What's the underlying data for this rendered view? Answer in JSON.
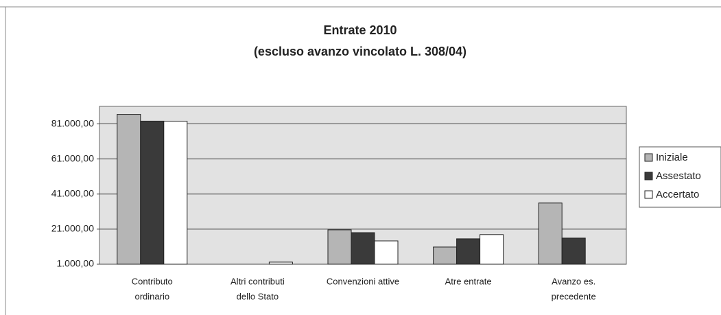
{
  "chart_data": {
    "type": "bar",
    "title": "Entrate 2010",
    "subtitle": "(escluso avanzo vincolato L. 308/04)",
    "categories": [
      [
        "Contributo",
        "ordinario"
      ],
      [
        "Altri contributi",
        "dello Stato"
      ],
      [
        "Convenzioni attive"
      ],
      [
        "Atre entrate"
      ],
      [
        "Avanzo es.",
        "precedente"
      ]
    ],
    "series": [
      {
        "name": "Iniziale",
        "color": "#b5b5b5",
        "values": [
          86500,
          null,
          20600,
          10800,
          35900
        ]
      },
      {
        "name": "Assestato",
        "color": "#3a3a3a",
        "values": [
          82600,
          null,
          19000,
          15500,
          15900
        ]
      },
      {
        "name": "Accertato",
        "color": "#ffffff",
        "values": [
          82500,
          2200,
          14300,
          17900,
          null
        ]
      }
    ],
    "ylim": [
      1000,
      91000
    ],
    "yticks": [
      {
        "value": 1000,
        "label": "1.000,00"
      },
      {
        "value": 21000,
        "label": "21.000,00"
      },
      {
        "value": 41000,
        "label": "41.000,00"
      },
      {
        "value": 61000,
        "label": "61.000,00"
      },
      {
        "value": 81000,
        "label": "81.000,00"
      }
    ],
    "grid": true,
    "legend": "right"
  }
}
